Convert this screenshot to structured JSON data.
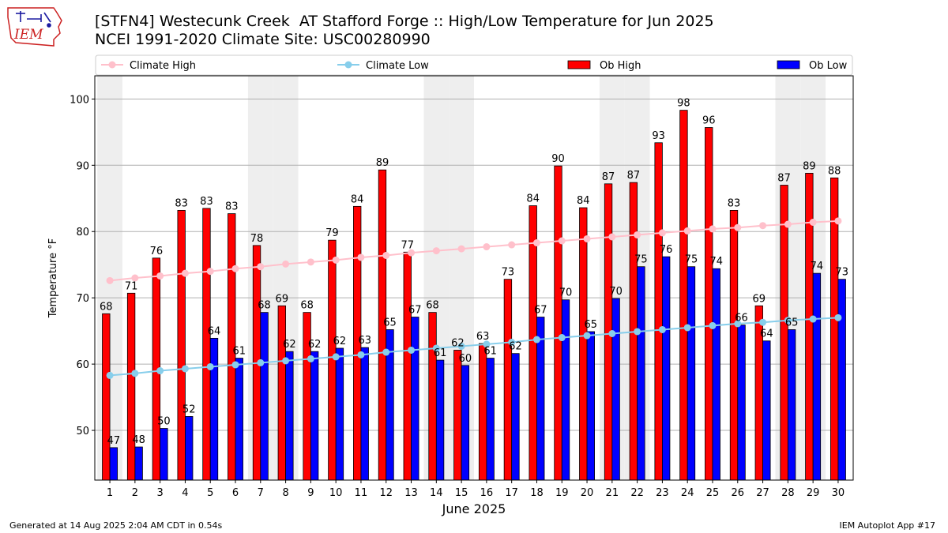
{
  "title_line1": "[STFN4] Westecunk Creek  AT Stafford Forge :: High/Low Temperature for Jun 2025",
  "title_line2": "NCEI 1991-2020 Climate Site: USC00280990",
  "logo_text": "IEM",
  "footer_left": "Generated at 14 Aug 2025 2:04 AM CDT in 0.54s",
  "footer_right": "IEM Autoplot App #17",
  "colors": {
    "ob_high": "#ff0000",
    "ob_low": "#0000ff",
    "climate_high": "#ffc0cb",
    "climate_low": "#87ceeb",
    "weekend_band": "#eeeeee",
    "grid": "#b0b0b0",
    "logo": "#cc2222"
  },
  "chart_data": {
    "type": "bar",
    "title": "[STFN4] Westecunk Creek  AT Stafford Forge :: High/Low Temperature for Jun 2025",
    "subtitle": "NCEI 1991-2020 Climate Site: USC00280990",
    "xlabel": "June 2025",
    "ylabel": "Temperature °F",
    "ylim": [
      42.5,
      103.5
    ],
    "yticks": [
      50,
      60,
      70,
      80,
      90,
      100
    ],
    "grid": true,
    "legend_position": "top",
    "categories": [
      "1",
      "2",
      "3",
      "4",
      "5",
      "6",
      "7",
      "8",
      "9",
      "10",
      "11",
      "12",
      "13",
      "14",
      "15",
      "16",
      "17",
      "18",
      "19",
      "20",
      "21",
      "22",
      "23",
      "24",
      "25",
      "26",
      "27",
      "28",
      "29",
      "30"
    ],
    "weekend_days": [
      1,
      7,
      8,
      14,
      15,
      21,
      22,
      28,
      29
    ],
    "series": [
      {
        "name": "Ob High",
        "kind": "bar",
        "values": [
          67.6,
          70.7,
          76.0,
          83.2,
          83.5,
          82.7,
          77.9,
          68.8,
          67.8,
          78.7,
          83.8,
          89.3,
          76.9,
          67.8,
          62.1,
          63.1,
          72.8,
          83.9,
          89.9,
          83.6,
          87.2,
          87.4,
          93.4,
          98.3,
          95.7,
          83.2,
          68.8,
          87.0,
          88.8,
          88.1
        ],
        "labels": [
          68,
          71,
          76,
          83,
          83,
          83,
          78,
          69,
          68,
          79,
          84,
          89,
          77,
          68,
          62,
          63,
          73,
          84,
          90,
          84,
          87,
          87,
          93,
          98,
          96,
          83,
          69,
          87,
          89,
          88
        ]
      },
      {
        "name": "Ob Low",
        "kind": "bar",
        "values": [
          47.4,
          47.5,
          50.3,
          52.1,
          63.9,
          60.9,
          67.8,
          61.9,
          61.9,
          62.4,
          62.5,
          65.2,
          67.1,
          60.6,
          59.8,
          60.9,
          61.6,
          67.1,
          69.7,
          64.9,
          69.9,
          74.7,
          76.2,
          74.7,
          74.4,
          65.9,
          63.5,
          65.2,
          73.7,
          72.8
        ],
        "labels": [
          47,
          48,
          50,
          52,
          64,
          61,
          68,
          62,
          62,
          62,
          63,
          65,
          67,
          61,
          60,
          61,
          62,
          67,
          70,
          65,
          70,
          75,
          76,
          75,
          74,
          66,
          64,
          65,
          74,
          73
        ]
      },
      {
        "name": "Climate High",
        "kind": "line",
        "values": [
          72.6,
          73.0,
          73.3,
          73.7,
          74.0,
          74.4,
          74.7,
          75.1,
          75.4,
          75.7,
          76.1,
          76.4,
          76.8,
          77.1,
          77.4,
          77.7,
          78.0,
          78.3,
          78.6,
          78.9,
          79.2,
          79.5,
          79.8,
          80.1,
          80.4,
          80.6,
          80.9,
          81.1,
          81.4,
          81.6
        ]
      },
      {
        "name": "Climate Low",
        "kind": "line",
        "values": [
          58.3,
          58.6,
          59.0,
          59.3,
          59.6,
          59.9,
          60.2,
          60.5,
          60.8,
          61.1,
          61.4,
          61.8,
          62.1,
          62.4,
          62.7,
          63.0,
          63.3,
          63.7,
          64.0,
          64.3,
          64.6,
          64.9,
          65.2,
          65.5,
          65.8,
          66.1,
          66.3,
          66.6,
          66.8,
          67.0
        ]
      }
    ]
  }
}
